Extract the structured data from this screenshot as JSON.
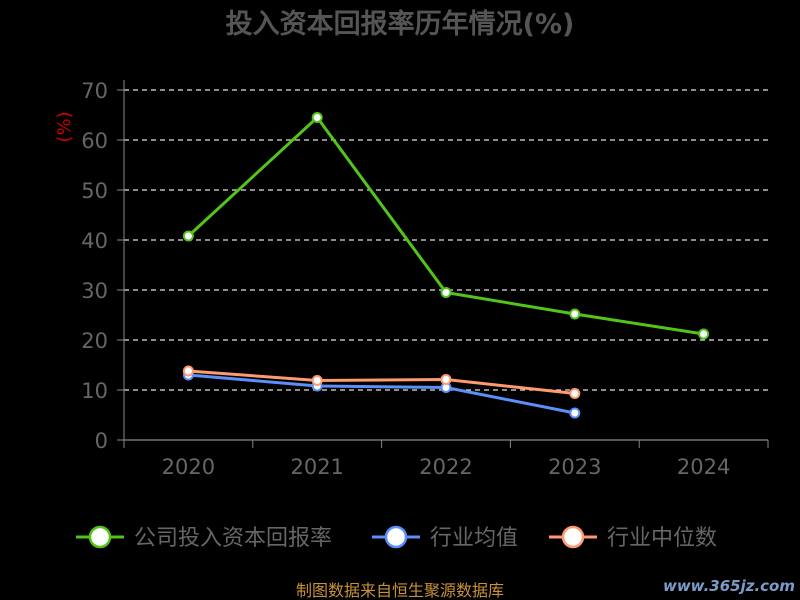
{
  "chart_data": {
    "type": "line",
    "title": "投入资本回报率历年情况(%)",
    "ylabel": "(%)",
    "xlabel": "",
    "categories": [
      "2020",
      "2021",
      "2022",
      "2023",
      "2024"
    ],
    "y_ticks": [
      "0",
      "10",
      "20",
      "30",
      "40",
      "50",
      "60",
      "70"
    ],
    "ylim": [
      0,
      70
    ],
    "grid": true,
    "legend_position": "bottom",
    "series": [
      {
        "name": "公司投入资本回报率",
        "color": "#52c41a",
        "values": [
          40.8,
          64.5,
          29.5,
          25.2,
          21.2
        ]
      },
      {
        "name": "行业均值",
        "color": "#5b8ff9",
        "values": [
          13.0,
          10.8,
          10.5,
          5.4,
          null
        ]
      },
      {
        "name": "行业中位数",
        "color": "#ff9a6e",
        "values": [
          13.8,
          11.9,
          12.1,
          9.3,
          null
        ]
      }
    ]
  },
  "footer": {
    "source": "制图数据来自恒生聚源数据库",
    "watermark": "www.365jz.com"
  }
}
